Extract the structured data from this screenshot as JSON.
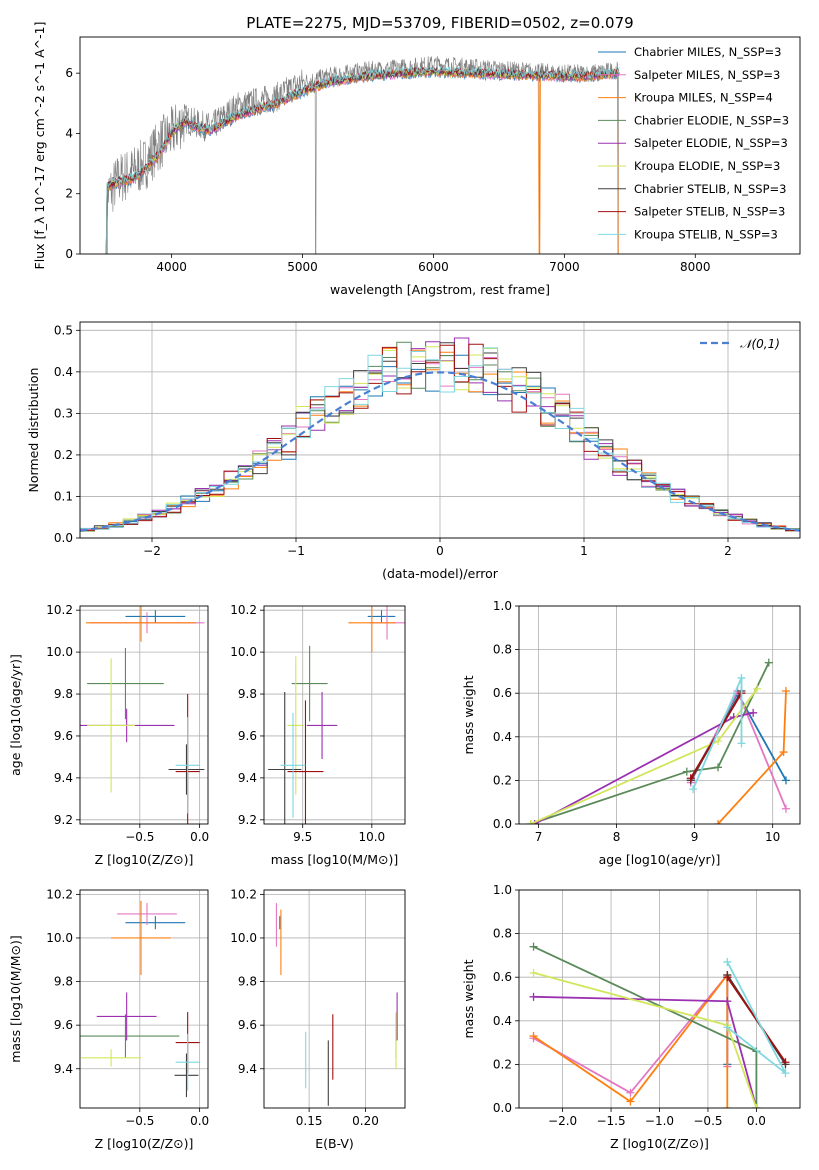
{
  "figure_title": "PLATE=2275, MJD=53709, FIBERID=0502, z=0.079",
  "colors": {
    "chabrier_miles": "#1f77b4",
    "salpeter_miles": "#e377c2",
    "kroupa_miles": "#ff7f0e",
    "chabrier_elodie": "#5a8a5a",
    "salpeter_elodie": "#9b30b0",
    "kroupa_elodie": "#d2e65a",
    "chabrier_stelib": "#404040",
    "salpeter_stelib": "#a01010",
    "kroupa_stelib": "#7fd8e0",
    "gray_spectrum": "#808080",
    "normal_curve": "#4a7fd4",
    "grid": "#b0b0b0"
  },
  "chart_data": [
    {
      "id": "spectrum",
      "type": "line",
      "title": "",
      "xlabel": "wavelength [Angstrom, rest frame]",
      "ylabel": "Flux [f_λ 10^-17 erg cm^-2 s^-1 A^-1]",
      "xlim": [
        3300,
        8800
      ],
      "ylim": [
        0,
        7.2
      ],
      "xticks": [
        4000,
        5000,
        6000,
        7000,
        8000
      ],
      "yticks": [
        0,
        2,
        4,
        6
      ],
      "grid": false,
      "legend_position": "top-right",
      "legend": [
        "Chabrier MILES, N_SSP=3",
        "Salpeter MILES, N_SSP=3",
        "Kroupa MILES, N_SSP=4",
        "Chabrier ELODIE, N_SSP=3",
        "Salpeter ELODIE, N_SSP=3",
        "Kroupa ELODIE, N_SSP=3",
        "Chabrier STELIB, N_SSP=3",
        "Salpeter STELIB, N_SSP=3",
        "Kroupa STELIB, N_SSP=3"
      ],
      "observed_continuum": {
        "x": [
          3500,
          3600,
          3700,
          3800,
          3900,
          4000,
          4100,
          4200,
          4300,
          4500,
          4800,
          5000,
          5200,
          5500,
          5800,
          6000,
          6300,
          6600,
          7000,
          7200,
          7400
        ],
        "y": [
          1.9,
          2.5,
          2.7,
          3.0,
          3.6,
          4.0,
          4.5,
          4.3,
          4.2,
          4.9,
          5.2,
          5.7,
          5.9,
          6.1,
          6.2,
          6.3,
          6.2,
          6.1,
          6.0,
          6.0,
          6.1
        ]
      },
      "model_continuum": {
        "x": [
          3500,
          3600,
          3700,
          3800,
          3900,
          4000,
          4100,
          4200,
          4300,
          4500,
          4800,
          5000,
          5200,
          5500,
          5800,
          6000,
          6300,
          6600,
          7000,
          7200,
          7400
        ],
        "y": [
          2.2,
          2.4,
          2.5,
          2.8,
          3.3,
          4.0,
          4.4,
          4.2,
          4.1,
          4.6,
          5.0,
          5.4,
          5.7,
          5.9,
          6.0,
          6.05,
          6.0,
          5.95,
          5.9,
          5.9,
          6.0
        ]
      }
    },
    {
      "id": "residuals",
      "type": "bar",
      "title": "",
      "xlabel": "(data-model)/error",
      "ylabel": "Normed distribution",
      "xlim": [
        -2.5,
        2.5
      ],
      "ylim": [
        0,
        0.52
      ],
      "xticks": [
        -2,
        -1,
        0,
        1,
        2
      ],
      "yticks": [
        0.0,
        0.1,
        0.2,
        0.3,
        0.4,
        0.5
      ],
      "grid": true,
      "legend_position": "top-right",
      "legend": [
        "𝒩(0,1)"
      ],
      "bin_width": 0.1
    },
    {
      "id": "age_vs_Z",
      "type": "scatter",
      "xlabel": "Z [log10(Z/Z⊙)]",
      "ylabel": "age  [log10(age/yr)]",
      "xlim": [
        -1.0,
        0.07
      ],
      "ylim": [
        9.18,
        10.22
      ],
      "xticks": [
        -0.5,
        0.0
      ],
      "yticks": [
        9.2,
        9.4,
        9.6,
        9.8,
        10.0,
        10.2
      ],
      "grid": true,
      "points": [
        {
          "c": "#1f77b4",
          "x": -0.37,
          "y": 10.17,
          "xe": 0.25,
          "ye": 0.03
        },
        {
          "c": "#e377c2",
          "x": -0.44,
          "y": 10.14,
          "xe": 0.48,
          "ye": 0.05
        },
        {
          "c": "#ff7f0e",
          "x": -0.49,
          "y": 10.14,
          "xe": 0.46,
          "ye": 0.09
        },
        {
          "c": "#5a8a5a",
          "x": -0.62,
          "y": 9.85,
          "xe": 0.32,
          "ye": 0.17
        },
        {
          "c": "#9b30b0",
          "x": -0.61,
          "y": 9.65,
          "xe": 0.4,
          "ye": 0.08
        },
        {
          "c": "#d2e65a",
          "x": -0.74,
          "y": 9.65,
          "xe": 0.2,
          "ye": 0.32
        },
        {
          "c": "#404040",
          "x": -0.11,
          "y": 9.44,
          "xe": 0.15,
          "ye": 0.12
        },
        {
          "c": "#a01010",
          "x": -0.1,
          "y": 9.43,
          "xe": 0.1,
          "ye": 0.37
        },
        {
          "c": "#7fd8e0",
          "x": -0.1,
          "y": 9.46,
          "xe": 0.1,
          "ye": 0.23
        }
      ]
    },
    {
      "id": "age_vs_mass",
      "type": "scatter",
      "xlabel": "mass [log10(M/M⊙)]",
      "ylabel": "",
      "xlim": [
        9.22,
        10.24
      ],
      "ylim": [
        9.18,
        10.22
      ],
      "xticks": [
        9.5,
        10.0
      ],
      "yticks": [
        9.2,
        9.4,
        9.6,
        9.8,
        10.0,
        10.2
      ],
      "grid": true,
      "points": [
        {
          "c": "#1f77b4",
          "x": 10.07,
          "y": 10.17,
          "xe": 0.1,
          "ye": 0.03
        },
        {
          "c": "#e377c2",
          "x": 10.11,
          "y": 10.14,
          "xe": 0.13,
          "ye": 0.08
        },
        {
          "c": "#ff7f0e",
          "x": 10.0,
          "y": 10.14,
          "xe": 0.17,
          "ye": 0.14
        },
        {
          "c": "#5a8a5a",
          "x": 9.55,
          "y": 9.85,
          "xe": 0.13,
          "ye": 0.18
        },
        {
          "c": "#9b30b0",
          "x": 9.64,
          "y": 9.65,
          "xe": 0.11,
          "ye": 0.16
        },
        {
          "c": "#d2e65a",
          "x": 9.45,
          "y": 9.65,
          "xe": 0.06,
          "ye": 0.33
        },
        {
          "c": "#404040",
          "x": 9.37,
          "y": 9.44,
          "xe": 0.12,
          "ye": 0.37
        },
        {
          "c": "#a01010",
          "x": 9.52,
          "y": 9.43,
          "xe": 0.13,
          "ye": 0.34
        },
        {
          "c": "#7fd8e0",
          "x": 9.43,
          "y": 9.46,
          "xe": 0.09,
          "ye": 0.25
        }
      ]
    },
    {
      "id": "weight_vs_age",
      "type": "line",
      "xlabel": "age  [log10(age/yr)]",
      "ylabel": "mass weight",
      "xlim": [
        6.75,
        10.35
      ],
      "ylim": [
        0,
        1.0
      ],
      "xticks": [
        7,
        8,
        9,
        10
      ],
      "yticks": [
        0.0,
        0.2,
        0.4,
        0.6,
        0.8,
        1.0
      ],
      "grid": true,
      "series": [
        {
          "c": "#1f77b4",
          "x": [
            8.95,
            9.55,
            10.17
          ],
          "y": [
            0.2,
            0.6,
            0.2
          ]
        },
        {
          "c": "#e377c2",
          "x": [
            8.95,
            9.55,
            10.17
          ],
          "y": [
            0.19,
            0.61,
            0.07
          ]
        },
        {
          "c": "#ff7f0e",
          "x": [
            9.3,
            10.14,
            10.17
          ],
          "y": [
            0.0,
            0.33,
            0.61
          ]
        },
        {
          "c": "#5a8a5a",
          "x": [
            6.9,
            8.9,
            9.3,
            9.95
          ],
          "y": [
            0.0,
            0.24,
            0.26,
            0.74
          ]
        },
        {
          "c": "#9b30b0",
          "x": [
            6.95,
            9.5,
            9.75
          ],
          "y": [
            0.0,
            0.49,
            0.51
          ]
        },
        {
          "c": "#d2e65a",
          "x": [
            6.9,
            9.3,
            9.8
          ],
          "y": [
            0.0,
            0.38,
            0.62
          ]
        },
        {
          "c": "#404040",
          "x": [
            8.95,
            9.6
          ],
          "y": [
            0.2,
            0.61
          ]
        },
        {
          "c": "#a01010",
          "x": [
            8.95,
            9.6
          ],
          "y": [
            0.21,
            0.6
          ]
        },
        {
          "c": "#7fd8e0",
          "x": [
            8.98,
            9.6,
            9.6
          ],
          "y": [
            0.16,
            0.67,
            0.37
          ]
        }
      ]
    },
    {
      "id": "mass_vs_Z",
      "type": "scatter",
      "xlabel": "Z [log10(Z/Z⊙)]",
      "ylabel": "mass [log10(M/M⊙)]",
      "xlim": [
        -1.0,
        0.07
      ],
      "ylim": [
        9.22,
        10.22
      ],
      "xticks": [
        -0.5,
        0.0
      ],
      "yticks": [
        9.4,
        9.6,
        9.8,
        10.0,
        10.2
      ],
      "grid": true,
      "points": [
        {
          "c": "#1f77b4",
          "x": -0.37,
          "y": 10.07,
          "xe": 0.25,
          "ye": 0.03
        },
        {
          "c": "#e377c2",
          "x": -0.44,
          "y": 10.11,
          "xe": 0.25,
          "ye": 0.05
        },
        {
          "c": "#ff7f0e",
          "x": -0.49,
          "y": 10.0,
          "xe": 0.25,
          "ye": 0.17
        },
        {
          "c": "#5a8a5a",
          "x": -0.62,
          "y": 9.55,
          "xe": 0.45,
          "ye": 0.1
        },
        {
          "c": "#9b30b0",
          "x": -0.61,
          "y": 9.64,
          "xe": 0.25,
          "ye": 0.11
        },
        {
          "c": "#d2e65a",
          "x": -0.74,
          "y": 9.45,
          "xe": 0.25,
          "ye": 0.04
        },
        {
          "c": "#404040",
          "x": -0.11,
          "y": 9.37,
          "xe": 0.1,
          "ye": 0.1
        },
        {
          "c": "#a01010",
          "x": -0.1,
          "y": 9.52,
          "xe": 0.1,
          "ye": 0.14
        },
        {
          "c": "#7fd8e0",
          "x": -0.1,
          "y": 9.43,
          "xe": 0.1,
          "ye": 0.13
        }
      ]
    },
    {
      "id": "mass_vs_ebv",
      "type": "scatter",
      "xlabel": "E(B-V)",
      "ylabel": "",
      "xlim": [
        0.11,
        0.235
      ],
      "ylim": [
        9.22,
        10.22
      ],
      "xticks": [
        0.15,
        0.2
      ],
      "yticks": [
        9.4,
        9.6,
        9.8,
        10.0,
        10.2
      ],
      "grid": true,
      "points": [
        {
          "c": "#1f77b4",
          "x": 0.124,
          "y": 10.07,
          "xe": 0,
          "ye": 0.03
        },
        {
          "c": "#e377c2",
          "x": 0.121,
          "y": 10.06,
          "xe": 0,
          "ye": 0.1
        },
        {
          "c": "#ff7f0e",
          "x": 0.125,
          "y": 9.98,
          "xe": 0,
          "ye": 0.15
        },
        {
          "c": "#5a8a5a",
          "x": 0.227,
          "y": 9.55,
          "xe": 0,
          "ye": 0.1
        },
        {
          "c": "#9b30b0",
          "x": 0.228,
          "y": 9.64,
          "xe": 0,
          "ye": 0.11
        },
        {
          "c": "#d2e65a",
          "x": 0.227,
          "y": 9.53,
          "xe": 0,
          "ye": 0.13
        },
        {
          "c": "#404040",
          "x": 0.167,
          "y": 9.38,
          "xe": 0,
          "ye": 0.15
        },
        {
          "c": "#a01010",
          "x": 0.171,
          "y": 9.5,
          "xe": 0,
          "ye": 0.15
        },
        {
          "c": "#7fd8e0",
          "x": 0.147,
          "y": 9.44,
          "xe": 0,
          "ye": 0.13
        }
      ]
    },
    {
      "id": "weight_vs_Z",
      "type": "line",
      "xlabel": "Z [log10(Z/Z⊙)]",
      "ylabel": "mass weight",
      "xlim": [
        -2.45,
        0.45
      ],
      "ylim": [
        0,
        1.0
      ],
      "xticks": [
        -2.0,
        -1.5,
        -1.0,
        -0.5,
        0.0
      ],
      "yticks": [
        0.0,
        0.2,
        0.4,
        0.6,
        0.8,
        1.0
      ],
      "grid": true,
      "series": [
        {
          "c": "#1f77b4",
          "x": [
            -0.3,
            -0.3
          ],
          "y": [
            0.2,
            0.6
          ]
        },
        {
          "c": "#e377c2",
          "x": [
            -2.3,
            -1.3,
            -0.3,
            -0.3
          ],
          "y": [
            0.32,
            0.07,
            0.61,
            0.19
          ]
        },
        {
          "c": "#ff7f0e",
          "x": [
            -2.3,
            -1.3,
            -0.3,
            -0.3
          ],
          "y": [
            0.33,
            0.03,
            0.61,
            0.0
          ]
        },
        {
          "c": "#5a8a5a",
          "x": [
            -2.3,
            0.0,
            0.0
          ],
          "y": [
            0.74,
            0.26,
            0.0
          ]
        },
        {
          "c": "#9b30b0",
          "x": [
            -2.3,
            -0.3,
            0.0
          ],
          "y": [
            0.51,
            0.49,
            0.0
          ]
        },
        {
          "c": "#d2e65a",
          "x": [
            -2.3,
            -0.3,
            0.0
          ],
          "y": [
            0.62,
            0.38,
            0.0
          ]
        },
        {
          "c": "#404040",
          "x": [
            -0.3,
            0.3
          ],
          "y": [
            0.61,
            0.2
          ]
        },
        {
          "c": "#a01010",
          "x": [
            -0.3,
            0.3
          ],
          "y": [
            0.6,
            0.21
          ]
        },
        {
          "c": "#7fd8e0",
          "x": [
            -0.3,
            0.3,
            -0.3
          ],
          "y": [
            0.67,
            0.16,
            0.37
          ]
        }
      ]
    }
  ]
}
